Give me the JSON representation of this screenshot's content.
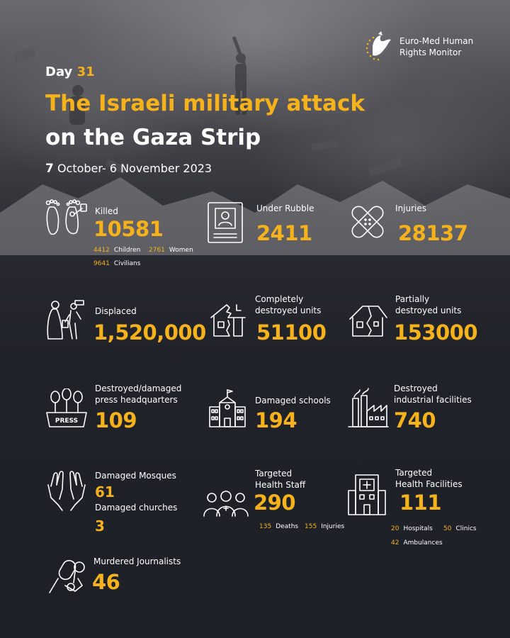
{
  "brand": {
    "line1": "Euro-Med Human",
    "line2": "Rights Monitor"
  },
  "header": {
    "day_label": "Day",
    "day_number": "31",
    "title_line1": "The Israeli military attack",
    "title_line2": "on the Gaza Strip",
    "date_day": "7",
    "date_rest": "October- 6 November 2023"
  },
  "stats": {
    "killed": {
      "label": "Killed",
      "value": "10581",
      "children_value": "4412",
      "children_label": "Children",
      "women_value": "2761",
      "women_label": "Women",
      "civilians_value": "9641",
      "civilians_label": "Civilians"
    },
    "under_rubble": {
      "label": "Under Rubble",
      "value": "2411"
    },
    "injuries": {
      "label": "Injuries",
      "value": "28137"
    },
    "displaced": {
      "label": "Displaced",
      "value": "1,520,000"
    },
    "completely_destroyed": {
      "label_line1": "Completely",
      "label_line2": "destroyed units",
      "value": "51100"
    },
    "partially_destroyed": {
      "label_line1": "Partially",
      "label_line2": "destroyed units",
      "value": "153000"
    },
    "press": {
      "label_line1": "Destroyed/damaged",
      "label_line2": "press headquarters",
      "value": "109",
      "icon_text": "PRESS"
    },
    "schools": {
      "label": "Damaged schools",
      "value": "194"
    },
    "industrial": {
      "label_line1": "Destroyed",
      "label_line2": "industrial facilities",
      "value": "740"
    },
    "mosques": {
      "label": "Damaged Mosques",
      "value": "61"
    },
    "churches": {
      "label": "Damaged churches",
      "value": "3"
    },
    "health_staff": {
      "label_line1": "Targeted",
      "label_line2": "Health Staff",
      "value": "290",
      "deaths_value": "135",
      "deaths_label": "Deaths",
      "injuries_value": "155",
      "injuries_label": "Injuries"
    },
    "health_facilities": {
      "label_line1": "Targeted",
      "label_line2": "Health Facilities",
      "value": "111",
      "hospitals_value": "20",
      "hospitals_label": "Hospitals",
      "clinics_value": "50",
      "clinics_label": "Clinics",
      "ambulances_value": "42",
      "ambulances_label": "Ambulances"
    },
    "journalists": {
      "label": "Murdered Journalists",
      "value": "46"
    }
  },
  "colors": {
    "accent": "#f6b21b",
    "background": "#20222a",
    "text": "#ffffff"
  }
}
